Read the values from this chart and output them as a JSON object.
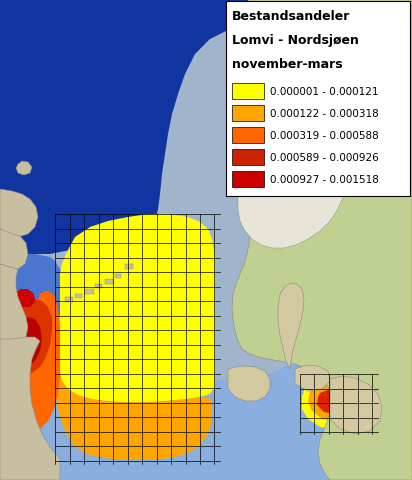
{
  "title_lines": [
    "Bestandsandeler",
    "Lomvi - Nordsjøen",
    "november-mars"
  ],
  "legend_entries": [
    {
      "label": "0.000001 - 0.000121",
      "color": "#FFFF00"
    },
    {
      "label": "0.000122 - 0.000318",
      "color": "#FFA500"
    },
    {
      "label": "0.000319 - 0.000588",
      "color": "#FF6600"
    },
    {
      "label": "0.000589 - 0.000926",
      "color": "#CC2200"
    },
    {
      "label": "0.000927 - 0.001518",
      "color": "#CC0000"
    }
  ],
  "figsize": [
    4.12,
    4.81
  ],
  "dpi": 100,
  "ocean_deep_color": "#1035a0",
  "ocean_mid_color": "#3a65c8",
  "ocean_light_color": "#7aaae0",
  "ocean_vlight_color": "#aac8e8",
  "land_norway_color": "#c0d090",
  "land_uk_color": "#c8bea0",
  "land_lowland_color": "#d4c8a0",
  "land_highland_color": "#e8e0c8",
  "grid_color": "#000000",
  "grid_lw": 0.5,
  "border_color": "#888888",
  "border_lw": 0.4
}
